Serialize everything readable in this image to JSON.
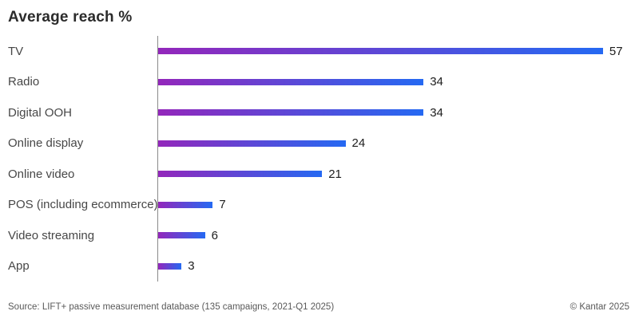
{
  "title": "Average reach %",
  "chart_data": {
    "type": "bar",
    "orientation": "horizontal",
    "title": "Average reach %",
    "xlabel": "",
    "ylabel": "",
    "xlim": [
      0,
      60
    ],
    "grid": false,
    "legend": "none",
    "value_labels_shown": true,
    "categories": [
      "TV",
      "Radio",
      "Digital OOH",
      "Online display",
      "Online video",
      "POS (including ecommerce)",
      "Video streaming",
      "App"
    ],
    "values": [
      57,
      34,
      34,
      24,
      21,
      7,
      6,
      3
    ],
    "bar_gradient_start": "#9327BB",
    "bar_gradient_end": "#2569F2",
    "axis_color": "#8A8A8A"
  },
  "footer": {
    "source": "Source: LIFT+ passive measurement database (135 campaigns, 2021-Q1 2025)",
    "copyright": "© Kantar 2025"
  }
}
